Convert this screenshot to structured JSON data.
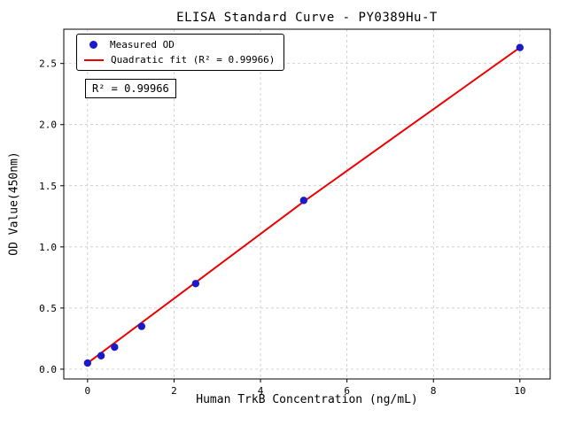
{
  "figure": {
    "background": "#ffffff"
  },
  "chart_data": {
    "type": "scatter",
    "title": "ELISA Standard Curve - PY0389Hu-T",
    "xlabel": "Human TrkB Concentration (ng/mL)",
    "ylabel": "OD Value(450nm)",
    "xlim": [
      -0.55,
      10.7
    ],
    "ylim": [
      -0.08,
      2.78
    ],
    "xticks": [
      0,
      2,
      4,
      6,
      8,
      10
    ],
    "xtick_labels": [
      "0",
      "2",
      "4",
      "6",
      "8",
      "10"
    ],
    "yticks": [
      0,
      0.5,
      1.0,
      1.5,
      2.0,
      2.5
    ],
    "ytick_labels": [
      "0.0",
      "0.5",
      "1.0",
      "1.5",
      "2.0",
      "2.5"
    ],
    "grid": true,
    "legend_position": "upper-left",
    "annotation": "R² = 0.99966",
    "series": [
      {
        "name": "Measured OD",
        "type": "scatter",
        "color": "#1a1acd",
        "x": [
          0,
          0.313,
          0.625,
          1.25,
          2.5,
          5,
          10
        ],
        "y": [
          0.05,
          0.11,
          0.18,
          0.35,
          0.7,
          1.38,
          2.63
        ]
      },
      {
        "name": "Quadratic fit (R² = 0.99966)",
        "type": "line",
        "color": "#ee0000",
        "x": [
          0,
          2.5,
          5,
          7.5,
          10
        ],
        "y": [
          0.05,
          0.71,
          1.37,
          2.0,
          2.63
        ]
      }
    ],
    "colors": {
      "grid": "#bfbfbf",
      "axis": "#000000"
    }
  }
}
